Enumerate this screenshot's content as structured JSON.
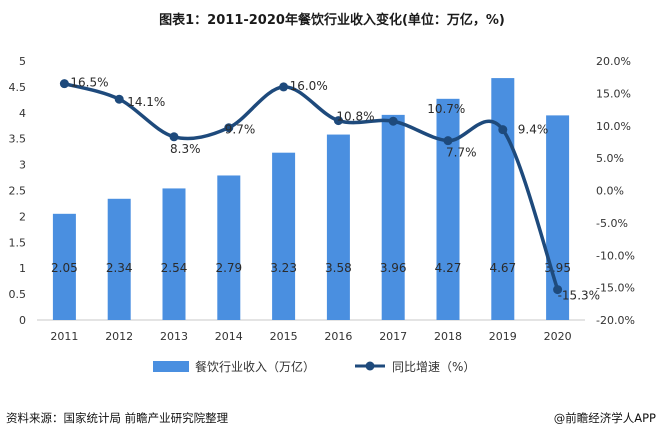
{
  "chart_data": {
    "type": "bar+line",
    "title": "图表1：2011-2020年餐饮行业收入变化(单位：万亿，%)",
    "categories": [
      "2011",
      "2012",
      "2013",
      "2014",
      "2015",
      "2016",
      "2017",
      "2018",
      "2019",
      "2020"
    ],
    "series": [
      {
        "name": "餐饮行业收入（万亿）",
        "type": "bar",
        "axis": "left",
        "values": [
          2.05,
          2.34,
          2.54,
          2.79,
          3.23,
          3.58,
          3.96,
          4.27,
          4.67,
          3.95
        ],
        "labels": [
          "2.05",
          "2.34",
          "2.54",
          "2.79",
          "3.23",
          "3.58",
          "3.96",
          "4.27",
          "4.67",
          "3.95"
        ],
        "color": "#4a8fe0"
      },
      {
        "name": "同比增速（%）",
        "type": "line",
        "axis": "right",
        "values": [
          16.5,
          14.1,
          8.3,
          9.7,
          16.0,
          10.8,
          10.7,
          7.7,
          9.4,
          -15.3
        ],
        "labels": [
          "16.5%",
          "14.1%",
          "8.3%",
          "9.7%",
          "16.0%",
          "10.8%",
          "10.7%",
          "7.7%",
          "9.4%",
          "-15.3%"
        ],
        "color": "#1e4a7c"
      }
    ],
    "y_left": {
      "range": [
        0,
        5
      ],
      "ticks": [
        "0",
        "0.5",
        "1",
        "1.5",
        "2",
        "2.5",
        "3",
        "3.5",
        "4",
        "4.5",
        "5"
      ]
    },
    "y_right": {
      "range": [
        -20,
        20
      ],
      "ticks": [
        "-20.0%",
        "-15.0%",
        "-10.0%",
        "-5.0%",
        "0.0%",
        "5.0%",
        "10.0%",
        "15.0%",
        "20.0%"
      ]
    },
    "legend_position": "bottom"
  },
  "footer": {
    "source": "资料来源：国家统计局 前瞻产业研究院整理",
    "brand": "@前瞻经济学人APP"
  }
}
